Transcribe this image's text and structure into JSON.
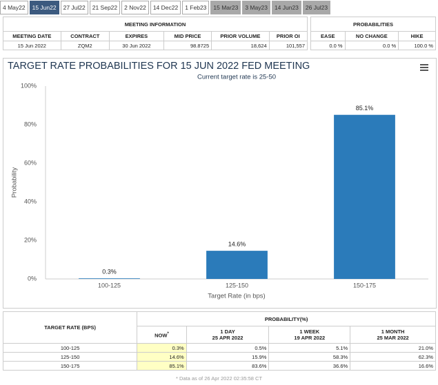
{
  "tabs": [
    "4 May22",
    "15 Jun22",
    "27 Jul22",
    "21 Sep22",
    "2 Nov22",
    "14 Dec22",
    "1 Feb23",
    "15 Mar23",
    "3 May23",
    "14 Jun23",
    "26 Jul23"
  ],
  "meeting_info": {
    "title": "MEETING INFORMATION",
    "headers": [
      "MEETING DATE",
      "CONTRACT",
      "EXPIRES",
      "MID PRICE",
      "PRIOR VOLUME",
      "PRIOR OI"
    ],
    "row": [
      "15 Jun 2022",
      "ZQM2",
      "30 Jun 2022",
      "98.8725",
      "18,624",
      "101,557"
    ]
  },
  "probabilities": {
    "title": "PROBABILITIES",
    "headers": [
      "EASE",
      "NO CHANGE",
      "HIKE"
    ],
    "row": [
      "0.0 %",
      "0.0 %",
      "100.0 %"
    ]
  },
  "chart_data": {
    "type": "bar",
    "title": "TARGET RATE PROBABILITIES FOR 15 JUN 2022 FED MEETING",
    "subtitle": "Current target rate is 25-50",
    "categories": [
      "100-125",
      "125-150",
      "150-175"
    ],
    "values": [
      0.3,
      14.6,
      85.1
    ],
    "value_labels": [
      "0.3%",
      "14.6%",
      "85.1%"
    ],
    "color": "#2b7bba",
    "x_label": "Target Rate (in bps)",
    "y_label": "Probability",
    "ylim": [
      0,
      100
    ],
    "yticks": [
      {
        "value": 0,
        "label": "0%"
      },
      {
        "value": 20,
        "label": "20%"
      },
      {
        "value": 40,
        "label": "40%"
      },
      {
        "value": 60,
        "label": "60%"
      },
      {
        "value": 80,
        "label": "80%"
      },
      {
        "value": 100,
        "label": "100%"
      }
    ],
    "grid": false
  },
  "history_table": {
    "first_header": "TARGET RATE (BPS)",
    "group_header": "PROBABILITY(%)",
    "columns": [
      {
        "label": "NOW",
        "mark": "*"
      },
      {
        "label": "1 DAY",
        "date": "25 APR 2022"
      },
      {
        "label": "1 WEEK",
        "date": "19 APR 2022"
      },
      {
        "label": "1 MONTH",
        "date": "25 MAR 2022"
      }
    ],
    "rows": [
      [
        "100-125",
        "0.3%",
        "0.5%",
        "5.1%",
        "21.0%"
      ],
      [
        "125-150",
        "14.6%",
        "15.9%",
        "58.3%",
        "62.3%"
      ],
      [
        "150-175",
        "85.1%",
        "83.6%",
        "36.6%",
        "16.6%"
      ]
    ],
    "footnote": "* Data as of 26 Apr 2022 02:35:58 CT"
  }
}
